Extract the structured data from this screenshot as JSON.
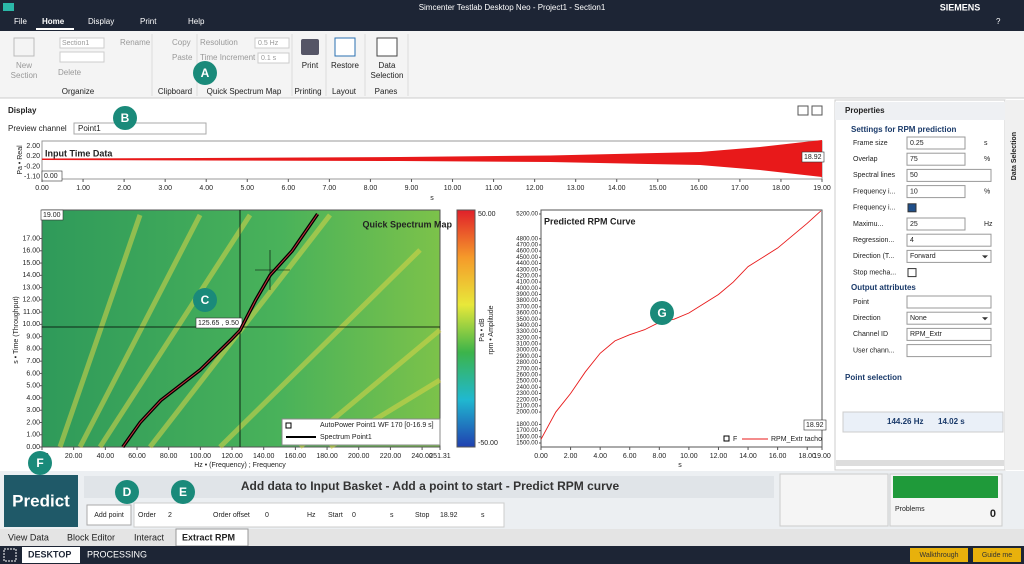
{
  "title_bar": {
    "title": "Simcenter Testlab Desktop Neo - Project1 - Section1",
    "brand": "SIEMENS",
    "help": "?"
  },
  "menu": [
    "File",
    "Home",
    "Display",
    "Print",
    "Help"
  ],
  "ribbon": {
    "new_section": [
      "New",
      "Section"
    ],
    "section": "Section1",
    "rename": "Rename",
    "delete": "Delete",
    "organize": "Organize",
    "copy": "Copy",
    "paste": "Paste",
    "clipboard": "Clipboard",
    "resolution": "Resolution",
    "resolution_value": "0.5 Hz",
    "time_increment": "Time Increment",
    "time_increment_value": "0.1 s",
    "quick_spectrum_map": "Quick Spectrum Map",
    "print": "Print",
    "printing": "Printing",
    "restore": "Restore",
    "layout": "Layout",
    "data_selection": [
      "Data",
      "Selection"
    ],
    "panes": "Panes"
  },
  "display": {
    "menu": "Display",
    "preview_label": "Preview channel",
    "preview_value": "Point1"
  },
  "time_plot": {
    "title": "Input Time Data",
    "y_label": "Pa • Real",
    "x_label": "s",
    "start_label": "0.00",
    "end_label": "18.92",
    "yticks": [
      "2.00",
      "0.20",
      "-0.20",
      "-1.10"
    ],
    "xticks": [
      "0.00",
      "1.00",
      "2.00",
      "3.00",
      "4.00",
      "5.00",
      "6.00",
      "7.00",
      "8.00",
      "9.00",
      "10.00",
      "11.00",
      "12.00",
      "13.00",
      "14.00",
      "15.00",
      "16.00",
      "17.00",
      "18.00",
      "19.00"
    ]
  },
  "spectrum_map": {
    "title": "Quick Spectrum Map",
    "y_label": "s • Time (Throughput)",
    "x_label": "Hz • (Frequency) ; Frequency",
    "top_label": "19.00",
    "crosshair_label": "125.65 , 9.50",
    "colorbar_label": "Pa • dB",
    "colorbar_max": "50.00",
    "colorbar_min": "-50.00",
    "legend": [
      "AutoPower Point1 WF 170 [0-16.9 s]",
      "Spectrum Point1"
    ],
    "xticks": [
      "0.00",
      "20.00",
      "40.00",
      "60.00",
      "80.00",
      "100.00",
      "120.00",
      "140.00",
      "160.00",
      "180.00",
      "200.00",
      "220.00",
      "240.00",
      "251.31"
    ],
    "yticks": [
      "0.00",
      "1.00",
      "2.00",
      "3.00",
      "4.00",
      "5.00",
      "6.00",
      "7.00",
      "8.00",
      "9.00",
      "10.00",
      "11.00",
      "12.00",
      "13.00",
      "14.00",
      "15.00",
      "16.00",
      "17.00"
    ],
    "curve": {
      "time": [
        0,
        2,
        3.8,
        6.3,
        8.7,
        9.5,
        12,
        14,
        16,
        19
      ],
      "freq": [
        51,
        62,
        75,
        100,
        119,
        125,
        135,
        144,
        158,
        174
      ]
    }
  },
  "rpm_plot": {
    "title": "Predicted RPM Curve",
    "y_label": "rpm • Amplitude",
    "x_label": "s",
    "end_label": "18.92",
    "legend": [
      "F",
      "RPM_Extr tacho"
    ],
    "xticks": [
      "0.00",
      "2.00",
      "4.00",
      "6.00",
      "8.00",
      "10.00",
      "12.00",
      "14.00",
      "16.00",
      "18.00",
      "19.00"
    ],
    "yticks": [
      "1500.00",
      "1600.00",
      "1700.00",
      "1800.00",
      "2000.00",
      "2100.00",
      "2200.00",
      "2300.00",
      "2400.00",
      "2500.00",
      "2600.00",
      "2700.00",
      "2800.00",
      "2900.00",
      "3000.00",
      "3100.00",
      "3200.00",
      "3300.00",
      "3400.00",
      "3500.00",
      "3600.00",
      "3700.00",
      "3800.00",
      "3900.00",
      "4000.00",
      "4100.00",
      "4200.00",
      "4300.00",
      "4400.00",
      "4500.00",
      "4600.00",
      "4700.00",
      "4800.00",
      "5200.00"
    ],
    "curve": {
      "x": [
        0,
        1,
        2,
        3,
        4,
        5,
        6,
        7,
        8,
        9,
        10,
        11,
        12,
        13,
        14,
        15,
        16,
        17,
        18,
        18.92
      ],
      "y": [
        1560,
        2000,
        2300,
        2650,
        2950,
        3150,
        3250,
        3330,
        3450,
        3500,
        3600,
        3750,
        3900,
        4100,
        4350,
        4500,
        4650,
        4850,
        5050,
        5250
      ]
    }
  },
  "properties": {
    "header": "Properties",
    "settings": "Settings for RPM prediction",
    "rows": [
      {
        "label": "Frame size",
        "value": "0.25",
        "unit": "s"
      },
      {
        "label": "Overlap",
        "value": "75",
        "unit": "%"
      },
      {
        "label": "Spectral lines",
        "value": "50"
      },
      {
        "label": "Frequency i...",
        "value": "10",
        "unit": "%"
      },
      {
        "label": "Frequency i...",
        "checked": true
      },
      {
        "label": "Maximu...",
        "value": "25",
        "unit": "Hz"
      },
      {
        "label": "Regression...",
        "value": "4"
      },
      {
        "label": "Direction (T...",
        "value": "Forward",
        "dropdown": true
      },
      {
        "label": "Stop mecha...",
        "checked": false
      }
    ],
    "output": "Output attributes",
    "output_rows": [
      {
        "label": "Point"
      },
      {
        "label": "Direction",
        "value": "None",
        "dropdown": true
      },
      {
        "label": "Channel ID",
        "value": "RPM_Extr"
      },
      {
        "label": "User chann..."
      }
    ],
    "point_selection": "Point selection",
    "point_freq": "144.26 Hz",
    "point_time": "14.02 s",
    "side_tab": "Data Selection"
  },
  "bottom": {
    "predict": "Predict",
    "status": "Add data to Input Basket - Add a point to start - Predict RPM curve",
    "add_point": "Add point",
    "order_label": "Order",
    "order": "2",
    "offset_label": "Order offset",
    "offset": "0",
    "offset_unit": "Hz",
    "start_label": "Start",
    "start": "0",
    "start_unit": "s",
    "stop_label": "Stop",
    "stop": "18.92",
    "stop_unit": "s",
    "problems": "Problems",
    "problems_count": "0"
  },
  "tabs": [
    "View Data",
    "Block Editor",
    "Interact",
    "Extract RPM"
  ],
  "taskbar": {
    "desktop": "DESKTOP",
    "processing": "PROCESSING",
    "walkthrough": "Walkthrough",
    "guide": "Guide me"
  },
  "callouts": [
    "A",
    "B",
    "C",
    "D",
    "E",
    "F",
    "G"
  ]
}
